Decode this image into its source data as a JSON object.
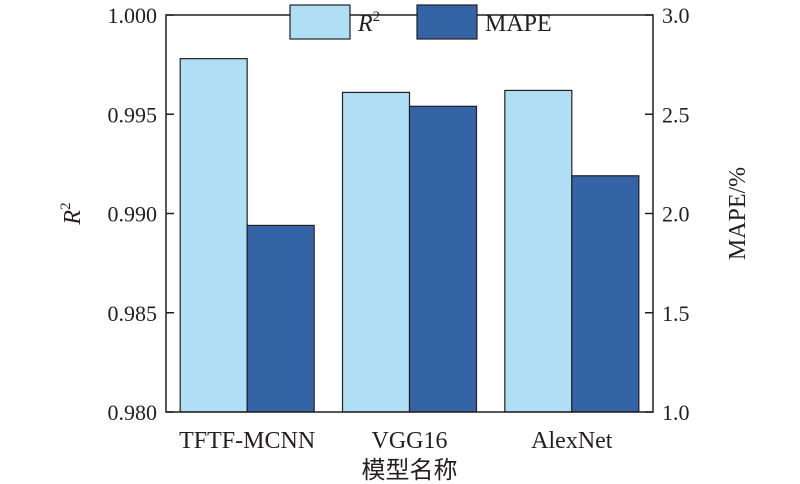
{
  "chart_data": {
    "type": "bar",
    "categories": [
      "TFTF-MCNN",
      "VGG16",
      "AlexNet"
    ],
    "series": [
      {
        "name": "R2",
        "axis": "left",
        "values": [
          0.9978,
          0.9961,
          0.9962
        ],
        "color": "#b0def5"
      },
      {
        "name": "MAPE",
        "axis": "right",
        "values": [
          1.94,
          2.54,
          2.19
        ],
        "color": "#3464a6"
      }
    ],
    "legend": {
      "position": "top-center",
      "items": [
        {
          "series": "R2",
          "label_main": "R",
          "label_sup": "2"
        },
        {
          "series": "MAPE",
          "label_main": "MAPE",
          "label_sup": ""
        }
      ]
    },
    "xlabel": "模型名称",
    "ylabel_left": {
      "main": "R",
      "sup": "2"
    },
    "ylabel_right": "MAPE/%",
    "ylim_left": [
      0.98,
      1.0
    ],
    "ylim_right": [
      1.0,
      3.0
    ],
    "yticks_left": [
      "0.980",
      "0.985",
      "0.990",
      "0.995",
      "1.000"
    ],
    "yticks_right": [
      "1.0",
      "1.5",
      "2.0",
      "2.5",
      "3.0"
    ],
    "grid": false
  }
}
